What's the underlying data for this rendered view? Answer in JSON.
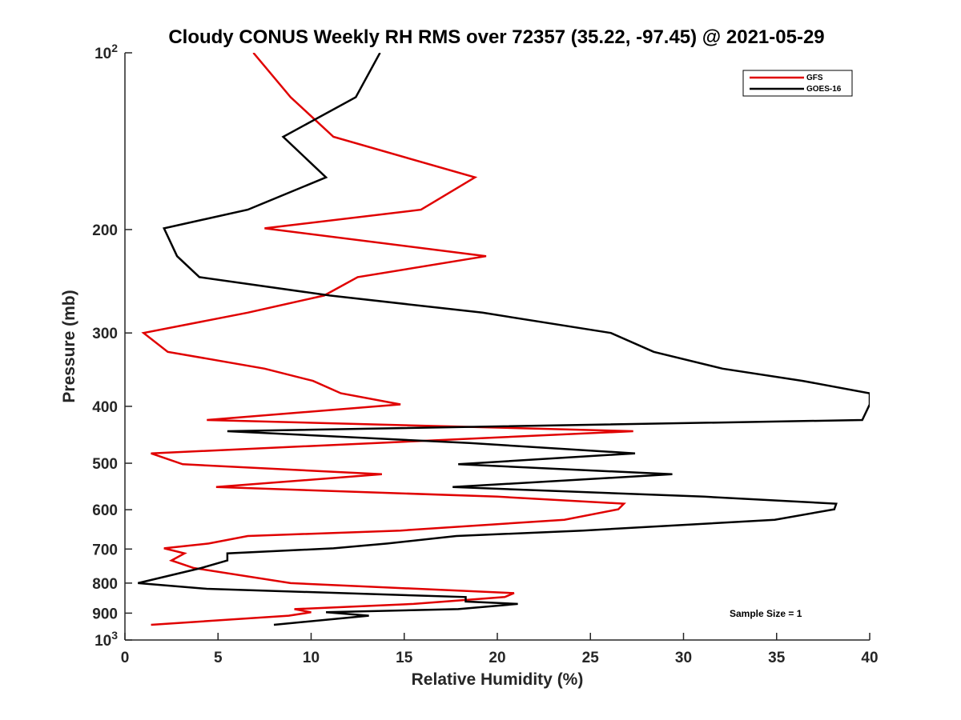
{
  "chart_data": {
    "type": "line",
    "title": "Cloudy CONUS Weekly RH RMS over 72357 (35.22, -97.45) @ 2021-05-29",
    "xlabel": "Relative Humidity (%)",
    "ylabel": "Pressure (mb)",
    "xlim": [
      0,
      40
    ],
    "ylim": [
      100,
      1000
    ],
    "yscale": "log",
    "yaxis_reversed": true,
    "grid": false,
    "legend_position": "top-right",
    "x_ticks": [
      "0",
      "5",
      "10",
      "15",
      "20",
      "25",
      "30",
      "35",
      "40"
    ],
    "y_ticks": [
      {
        "value": 100,
        "base": "10",
        "exp": "2"
      },
      {
        "value": 200,
        "label": "200"
      },
      {
        "value": 300,
        "label": "300"
      },
      {
        "value": 400,
        "label": "400"
      },
      {
        "value": 500,
        "label": "500"
      },
      {
        "value": 600,
        "label": "600"
      },
      {
        "value": 700,
        "label": "700"
      },
      {
        "value": 800,
        "label": "800"
      },
      {
        "value": 900,
        "label": "900"
      },
      {
        "value": 1000,
        "base": "10",
        "exp": "3"
      }
    ],
    "annotation": "Sample Size = 1",
    "series": [
      {
        "name": "GFS",
        "color": "#e00000",
        "points": [
          [
            6.9,
            100
          ],
          [
            8.9,
            119
          ],
          [
            11.2,
            139
          ],
          [
            18.8,
            163
          ],
          [
            15.9,
            185
          ],
          [
            7.5,
            199
          ],
          [
            19.4,
            222
          ],
          [
            12.5,
            241
          ],
          [
            10.7,
            259
          ],
          [
            6.6,
            277
          ],
          [
            1.0,
            300
          ],
          [
            2.3,
            323
          ],
          [
            7.5,
            345
          ],
          [
            10.1,
            362
          ],
          [
            11.6,
            380
          ],
          [
            14.8,
            397
          ],
          [
            4.4,
            422
          ],
          [
            27.3,
            441
          ],
          [
            1.4,
            481
          ],
          [
            3.1,
            502
          ],
          [
            13.8,
            522
          ],
          [
            4.9,
            549
          ],
          [
            20.0,
            570
          ],
          [
            26.8,
            586
          ],
          [
            26.5,
            599
          ],
          [
            23.6,
            624
          ],
          [
            14.8,
            651
          ],
          [
            6.6,
            665
          ],
          [
            4.5,
            685
          ],
          [
            2.1,
            698
          ],
          [
            3.2,
            712
          ],
          [
            2.5,
            732
          ],
          [
            3.7,
            754
          ],
          [
            8.9,
            800
          ],
          [
            20.9,
            832
          ],
          [
            20.4,
            845
          ],
          [
            15.5,
            868
          ],
          [
            9.1,
            886
          ],
          [
            10.0,
            897
          ],
          [
            8.8,
            909
          ],
          [
            1.4,
            942
          ]
        ]
      },
      {
        "name": "GOES-16",
        "color": "#000000",
        "points": [
          [
            13.7,
            100
          ],
          [
            12.4,
            119
          ],
          [
            8.5,
            139
          ],
          [
            10.8,
            163
          ],
          [
            6.6,
            185
          ],
          [
            2.1,
            199
          ],
          [
            2.8,
            222
          ],
          [
            4.0,
            241
          ],
          [
            11.0,
            259
          ],
          [
            19.2,
            277
          ],
          [
            26.1,
            300
          ],
          [
            28.4,
            323
          ],
          [
            32.1,
            345
          ],
          [
            36.4,
            362
          ],
          [
            40.0,
            380
          ],
          [
            40.0,
            397
          ],
          [
            39.6,
            422
          ],
          [
            5.5,
            441
          ],
          [
            18.5,
            462
          ],
          [
            27.4,
            481
          ],
          [
            17.9,
            502
          ],
          [
            29.4,
            522
          ],
          [
            17.6,
            549
          ],
          [
            31.1,
            570
          ],
          [
            38.2,
            586
          ],
          [
            38.1,
            599
          ],
          [
            34.9,
            624
          ],
          [
            24.6,
            651
          ],
          [
            17.8,
            665
          ],
          [
            14.1,
            685
          ],
          [
            11.2,
            698
          ],
          [
            5.5,
            712
          ],
          [
            5.5,
            732
          ],
          [
            4.1,
            754
          ],
          [
            0.7,
            800
          ],
          [
            4.4,
            818
          ],
          [
            18.3,
            845
          ],
          [
            18.3,
            860
          ],
          [
            21.1,
            868
          ],
          [
            17.9,
            886
          ],
          [
            10.8,
            897
          ],
          [
            13.1,
            909
          ],
          [
            8.0,
            942
          ]
        ]
      }
    ]
  }
}
